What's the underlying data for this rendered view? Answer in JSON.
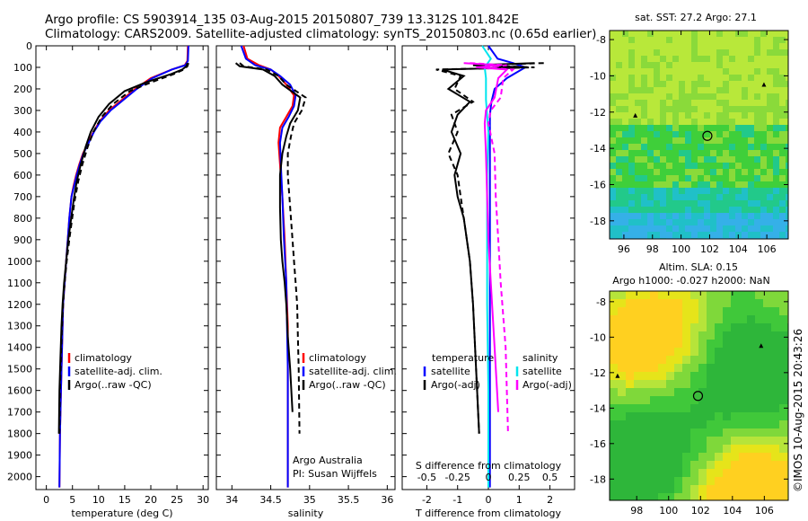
{
  "header": {
    "line1": "Argo profile: CS 5903914_135 03-Aug-2015 20150807_739 13.312S 101.842E",
    "line2": "Climatology: CARS2009. Satellite-adjusted climatology: synTS_20150803.nc (0.65d earlier)"
  },
  "chart_data": [
    {
      "type": "line",
      "xlabel": "temperature (deg C)",
      "xlim": [
        -2,
        31
      ],
      "xticks": [
        0,
        5,
        10,
        15,
        20,
        25,
        30
      ],
      "ylim": [
        0,
        2060
      ],
      "yticks": [
        0,
        100,
        200,
        300,
        400,
        500,
        600,
        700,
        800,
        900,
        1000,
        1100,
        1200,
        1300,
        1400,
        1500,
        1600,
        1700,
        1800,
        1900,
        2000
      ],
      "legend": [
        "climatology",
        "satellite-adj. clim.",
        "Argo(..raw -QC)"
      ],
      "colors": {
        "climatology": "#ff0000",
        "satellite": "#0000ff",
        "argo": "#000000"
      },
      "series": [
        {
          "name": "climatology",
          "x": [
            27.1,
            27.0,
            26.5,
            24,
            20,
            17,
            14.5,
            12,
            10.2,
            9,
            8,
            7,
            6.3,
            5.7,
            5.2,
            4.8,
            4.4,
            4.1,
            3.8,
            3.5,
            3.2,
            3.0,
            2.8,
            2.6,
            2.5
          ],
          "y": [
            0,
            70,
            90,
            110,
            150,
            200,
            250,
            300,
            350,
            400,
            450,
            500,
            550,
            600,
            650,
            700,
            800,
            900,
            1000,
            1100,
            1200,
            1400,
            1600,
            1800,
            2050
          ]
        },
        {
          "name": "satellite-adj. clim.",
          "x": [
            27.2,
            27.1,
            26.6,
            24,
            20.3,
            17.3,
            14.8,
            12.3,
            10.4,
            9.1,
            8.1,
            7.1,
            6.4,
            5.8,
            5.3,
            4.8,
            4.4,
            4.1,
            3.8,
            3.5,
            3.2,
            3.0,
            2.8,
            2.6,
            2.5
          ],
          "y": [
            0,
            70,
            90,
            110,
            150,
            200,
            250,
            300,
            350,
            400,
            450,
            500,
            550,
            600,
            650,
            700,
            800,
            900,
            1000,
            1100,
            1200,
            1400,
            1600,
            1800,
            2050
          ]
        },
        {
          "name": "Argo(..raw -QC)",
          "style": "solid",
          "x": [
            27.0,
            26.8,
            26,
            24,
            19,
            15,
            12,
            10,
            8.5,
            7.5,
            6.6,
            5.8,
            5.2,
            4.7,
            4.2,
            3.8,
            3.4,
            3.1,
            2.9,
            2.7,
            2.5,
            2.4
          ],
          "y": [
            80,
            95,
            110,
            130,
            170,
            210,
            270,
            330,
            400,
            470,
            550,
            630,
            720,
            810,
            900,
            1000,
            1100,
            1200,
            1300,
            1450,
            1600,
            1800
          ]
        },
        {
          "name": "Argo(..raw -QC)",
          "style": "dashed",
          "x": [
            27.2,
            27.0,
            26.3,
            24.5,
            20,
            16,
            12.8,
            10.6,
            9,
            7.9,
            6.9,
            6.1,
            5.4,
            4.9,
            4.4,
            3.9,
            3.5,
            3.2,
            3.0,
            2.8,
            2.6,
            2.5
          ],
          "y": [
            80,
            95,
            110,
            130,
            170,
            210,
            270,
            330,
            400,
            470,
            550,
            630,
            720,
            810,
            900,
            1000,
            1100,
            1200,
            1300,
            1450,
            1600,
            1800
          ]
        }
      ]
    },
    {
      "type": "line",
      "xlabel": "salinity",
      "xlim": [
        33.8,
        36.1
      ],
      "xticks": [
        34,
        34.5,
        35,
        35.5,
        36
      ],
      "ylim": [
        0,
        2060
      ],
      "legend": [
        "climatology",
        "satellite-adj. clim.",
        "Argo(..raw -QC)"
      ],
      "annotation": [
        "Argo Australia",
        "PI: Susan Wijffels"
      ],
      "series": [
        {
          "name": "climatology",
          "x": [
            34.15,
            34.2,
            34.35,
            34.5,
            34.6,
            34.7,
            34.8,
            34.78,
            34.7,
            34.62,
            34.6,
            34.62,
            34.65,
            34.68,
            34.7,
            34.72,
            34.72,
            34.72,
            34.72
          ],
          "y": [
            0,
            60,
            90,
            110,
            140,
            180,
            230,
            280,
            330,
            380,
            450,
            550,
            700,
            900,
            1100,
            1300,
            1500,
            1700,
            2050
          ]
        },
        {
          "name": "satellite-adj. clim.",
          "x": [
            34.12,
            34.18,
            34.3,
            34.5,
            34.62,
            34.75,
            34.82,
            34.8,
            34.73,
            34.65,
            34.62,
            34.63,
            34.65,
            34.67,
            34.7,
            34.71,
            34.72,
            34.72,
            34.72
          ],
          "y": [
            0,
            60,
            90,
            110,
            140,
            180,
            230,
            280,
            330,
            380,
            450,
            550,
            700,
            900,
            1100,
            1300,
            1500,
            1700,
            2050
          ]
        },
        {
          "name": "Argo(..raw -QC)",
          "style": "solid",
          "x": [
            34.05,
            34.1,
            34.4,
            34.55,
            34.65,
            34.88,
            34.85,
            34.75,
            34.7,
            34.65,
            34.62,
            34.62,
            34.63,
            34.65,
            34.68,
            34.7,
            34.72,
            34.75,
            34.78
          ],
          "y": [
            80,
            95,
            110,
            140,
            180,
            240,
            300,
            360,
            420,
            500,
            600,
            750,
            900,
            1000,
            1100,
            1200,
            1350,
            1500,
            1700
          ]
        },
        {
          "name": "Argo(..raw -QC)",
          "style": "dashed",
          "x": [
            34.1,
            34.15,
            34.45,
            34.6,
            34.7,
            34.95,
            34.9,
            34.8,
            34.76,
            34.72,
            34.72,
            34.75,
            34.78,
            34.8,
            34.82,
            34.84,
            34.85,
            34.86,
            34.87
          ],
          "y": [
            80,
            95,
            110,
            140,
            180,
            240,
            300,
            360,
            420,
            500,
            600,
            750,
            900,
            1000,
            1100,
            1200,
            1350,
            1500,
            1800
          ]
        }
      ]
    },
    {
      "type": "line",
      "xlabel": "T difference from climatology",
      "xlabel_top": "S difference from climatology",
      "xlim": [
        -2.8,
        2.8
      ],
      "xticks": [
        -2,
        -1,
        0,
        1,
        2
      ],
      "xticks_top": [
        "-0.5",
        "-0.25",
        "0",
        "0.25",
        "0.5"
      ],
      "ylim": [
        0,
        2060
      ],
      "legend": {
        "temperature": {
          "title": "temperature",
          "items": [
            "satellite",
            "Argo(-adj)"
          ]
        },
        "salinity": {
          "title": "salinity",
          "items": [
            "satellite",
            "Argo(-adj)"
          ]
        }
      },
      "colors": {
        "t_satellite": "#0000ff",
        "t_argo": "#000000",
        "s_satellite": "#00e5ee",
        "s_argo": "#ff00ff"
      },
      "series": [
        {
          "name": "satellite",
          "var": "temperature",
          "style": "solid",
          "x": [
            0,
            0.3,
            0.8,
            1.2,
            0.6,
            0.2,
            0.1,
            0.05,
            0.05,
            0.05,
            0.05,
            0.05,
            0.05,
            0.05,
            0.05,
            0.05
          ],
          "y": [
            0,
            60,
            80,
            100,
            150,
            200,
            260,
            320,
            400,
            500,
            700,
            900,
            1200,
            1500,
            1800,
            2050
          ]
        },
        {
          "name": "Argo(-adj)",
          "var": "temperature",
          "style": "solid",
          "x": [
            1.5,
            -0.5,
            1.2,
            -1.5,
            -0.8,
            -1.3,
            -0.6,
            -1.0,
            -1.2,
            -0.9,
            -1.1,
            -1.0,
            -0.8,
            -0.7,
            -0.6,
            -0.5,
            -0.4,
            -0.3
          ],
          "y": [
            80,
            90,
            100,
            110,
            140,
            200,
            260,
            320,
            400,
            500,
            600,
            700,
            800,
            900,
            1000,
            1200,
            1500,
            1800
          ]
        },
        {
          "name": "Argo(-adj)",
          "var": "temperature",
          "style": "dashed",
          "x": [
            1.8,
            -0.3,
            1.5,
            -1.7,
            -0.9,
            -1.1,
            -0.5,
            -1.2,
            -1.0,
            -1.3,
            -1.0,
            -0.9,
            -0.8,
            -0.7,
            -0.6,
            -0.5,
            -0.4,
            -0.3
          ],
          "y": [
            80,
            90,
            100,
            110,
            140,
            200,
            260,
            320,
            400,
            500,
            600,
            700,
            800,
            900,
            1000,
            1200,
            1500,
            1800
          ]
        },
        {
          "name": "satellite",
          "var": "salinity",
          "style": "solid",
          "x": [
            -0.05,
            0.02,
            -0.03,
            -0.02,
            -0.02,
            0.0,
            -0.01,
            -0.01,
            -0.01,
            0.0,
            0.0
          ],
          "y": [
            0,
            60,
            100,
            150,
            250,
            400,
            600,
            900,
            1200,
            1600,
            2050
          ]
        },
        {
          "name": "Argo(-adj)",
          "var": "salinity",
          "style": "solid",
          "x": [
            -0.2,
            0.1,
            -0.1,
            0.15,
            0.08,
            0.05,
            -0.02,
            -0.03,
            -0.02,
            -0.01,
            0.0,
            0.02,
            0.05,
            0.08
          ],
          "y": [
            80,
            90,
            100,
            110,
            150,
            240,
            300,
            360,
            500,
            700,
            900,
            1100,
            1400,
            1700
          ]
        },
        {
          "name": "Argo(-adj)",
          "var": "salinity",
          "style": "dashed",
          "x": [
            -0.15,
            0.15,
            -0.05,
            0.2,
            0.12,
            0.1,
            0.02,
            0.0,
            0.05,
            0.06,
            0.08,
            0.1,
            0.14,
            0.16
          ],
          "y": [
            80,
            90,
            100,
            110,
            150,
            240,
            300,
            360,
            500,
            700,
            900,
            1100,
            1400,
            1800
          ]
        }
      ]
    },
    {
      "type": "heatmap",
      "title": "sat. SST: 27.2  Argo: 27.1",
      "xlim": [
        95,
        107.5
      ],
      "ylim": [
        -19,
        -7.5
      ],
      "xticks": [
        96,
        98,
        100,
        102,
        104,
        106
      ],
      "yticks": [
        -8,
        -10,
        -12,
        -14,
        -16,
        -18
      ],
      "profile_location": [
        101.842,
        -13.312
      ],
      "markers": [
        [
          105.8,
          -10.5
        ],
        [
          96.8,
          -12.2
        ]
      ]
    },
    {
      "type": "heatmap",
      "title": "Altim. SLA: 0.15",
      "subtitle": "Argo h1000: -0.027 h2000: NaN",
      "xlim": [
        96.3,
        107.5
      ],
      "ylim": [
        -19.2,
        -7.4
      ],
      "xticks": [
        98,
        100,
        102,
        104,
        106
      ],
      "yticks": [
        -8,
        -10,
        -12,
        -14,
        -16,
        -18
      ],
      "profile_location": [
        101.842,
        -13.312
      ],
      "markers": [
        [
          105.8,
          -10.5
        ],
        [
          96.8,
          -12.2
        ]
      ]
    }
  ],
  "footer": {
    "stamp": "©IMOS 10-Aug-2015 20:43:26"
  }
}
